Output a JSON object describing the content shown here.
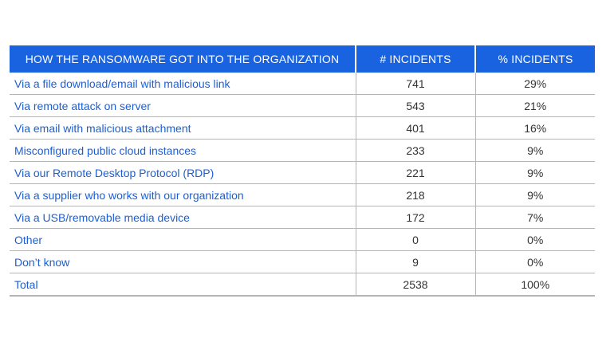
{
  "table": {
    "headers": [
      "HOW THE RANSOMWARE GOT INTO THE ORGANIZATION",
      "# INCIDENTS",
      "% INCIDENTS"
    ],
    "rows": [
      [
        "Via a file download/email with malicious link",
        "741",
        "29%"
      ],
      [
        "Via remote attack on server",
        "543",
        "21%"
      ],
      [
        "Via email with malicious attachment",
        "401",
        "16%"
      ],
      [
        "Misconfigured public cloud instances",
        "233",
        "9%"
      ],
      [
        "Via our Remote Desktop Protocol (RDP)",
        "221",
        "9%"
      ],
      [
        "Via a supplier who works with our organization",
        "218",
        "9%"
      ],
      [
        "Via a USB/removable media device",
        "172",
        "7%"
      ],
      [
        "Other",
        "0",
        "0%"
      ],
      [
        "Don’t know",
        "9",
        "0%"
      ],
      [
        "Total",
        "2538",
        "100%"
      ]
    ]
  },
  "colors": {
    "header_bg": "#1a63e0",
    "header_text": "#ffffff",
    "label_text": "#1a5fd6",
    "value_text": "#333333",
    "rule": "#b5b5b5"
  }
}
